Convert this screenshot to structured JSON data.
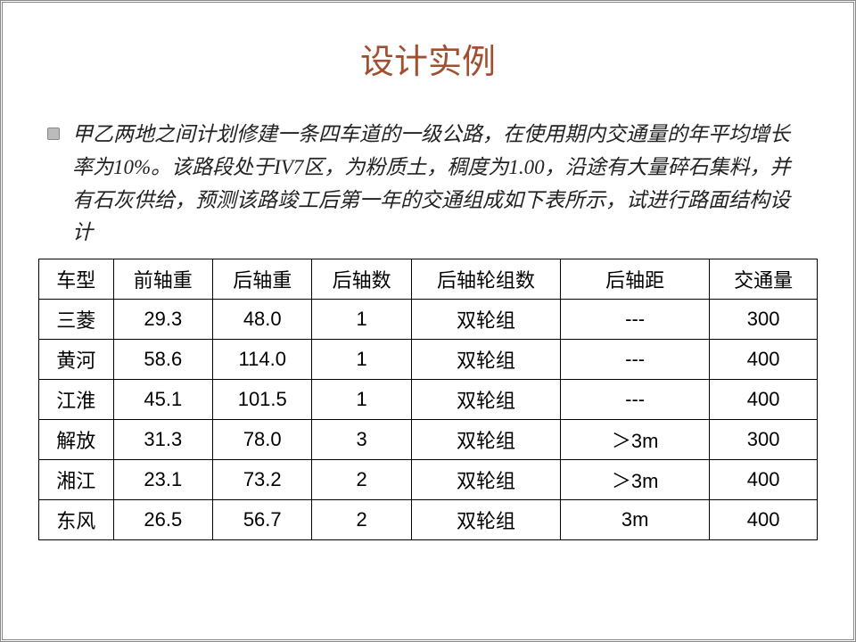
{
  "title": "设计实例",
  "paragraph": "甲乙两地之间计划修建一条四车道的一级公路，在使用期内交通量的年平均增长率为10%。该路段处于IV7区，为粉质土，稠度为1.00，沿途有大量碎石集料，并有石灰供给，预测该路竣工后第一年的交通组成如下表所示，试进行路面结构设计",
  "table": {
    "columns": [
      "车型",
      "前轴重",
      "后轴重",
      "后轴数",
      "后轴轮组数",
      "后轴距",
      "交通量"
    ],
    "rows": [
      [
        "三菱",
        "29.3",
        "48.0",
        "1",
        "双轮组",
        "---",
        "300"
      ],
      [
        "黄河",
        "58.6",
        "114.0",
        "1",
        "双轮组",
        "---",
        "400"
      ],
      [
        "江淮",
        "45.1",
        "101.5",
        "1",
        "双轮组",
        "---",
        "400"
      ],
      [
        "解放",
        "31.3",
        "78.0",
        "3",
        "双轮组",
        "＞3m",
        "300"
      ],
      [
        "湘江",
        "23.1",
        "73.2",
        "2",
        "双轮组",
        "＞3m",
        "400"
      ],
      [
        "东风",
        "26.5",
        "56.7",
        "2",
        "双轮组",
        "3m",
        "400"
      ]
    ]
  },
  "style": {
    "title_color": "#a05030",
    "title_fontsize": 38,
    "body_fontsize": 23,
    "table_fontsize": 22,
    "border_color": "#000000",
    "background": "#ffffff"
  }
}
